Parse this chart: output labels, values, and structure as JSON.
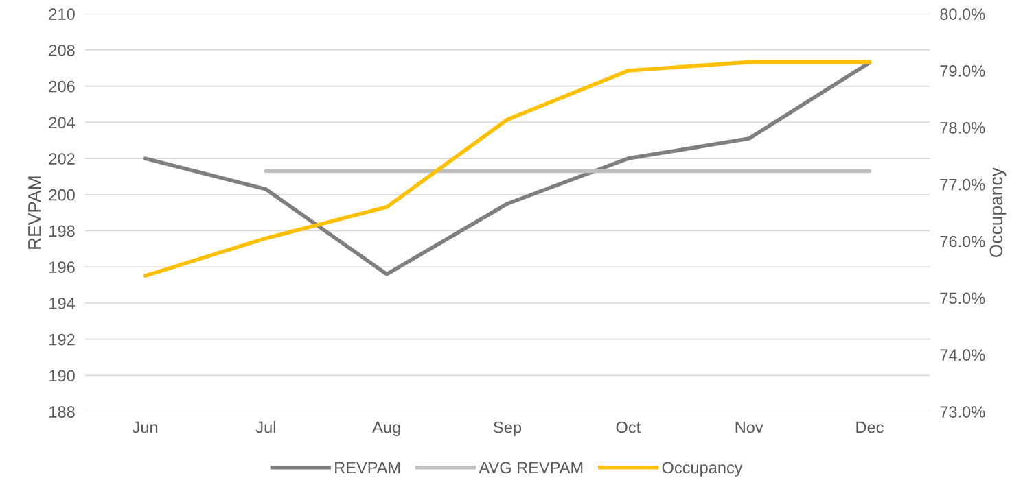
{
  "chart_data": {
    "type": "line",
    "categories": [
      "Jun",
      "Jul",
      "Aug",
      "Sep",
      "Oct",
      "Nov",
      "Dec"
    ],
    "ylabel": "REVPAM",
    "y2label": "Occupancy",
    "series": [
      {
        "name": "REVPAM",
        "color": "#7f7f7f",
        "values": [
          202.0,
          200.3,
          195.6,
          199.5,
          202.0,
          203.1,
          207.3
        ]
      },
      {
        "name": "AVG REVPAM",
        "color": "#bfbfbf",
        "values": [
          null,
          201.3,
          201.3,
          201.3,
          201.3,
          201.3,
          201.3
        ]
      },
      {
        "name": "Occupancy",
        "color": "#ffc000",
        "axis": "y2",
        "values": [
          75.39,
          76.05,
          76.6,
          78.14,
          79.0,
          79.15,
          79.15
        ]
      }
    ],
    "ylim": [
      188,
      210
    ],
    "yticks": [
      188,
      190,
      192,
      194,
      196,
      198,
      200,
      202,
      204,
      206,
      208,
      210
    ],
    "y2lim": [
      73,
      80
    ],
    "y2ticks": [
      {
        "value": 73,
        "label": "73.0%"
      },
      {
        "value": 74,
        "label": "74.0%"
      },
      {
        "value": 75,
        "label": "75.0%"
      },
      {
        "value": 76,
        "label": "76.0%"
      },
      {
        "value": 77,
        "label": "77.0%"
      },
      {
        "value": 78,
        "label": "78.0%"
      },
      {
        "value": 79,
        "label": "79.0%"
      },
      {
        "value": 80,
        "label": "80.0%"
      }
    ],
    "grid": "y",
    "legend": "bottom",
    "marker": "none",
    "line_style": "solid"
  }
}
